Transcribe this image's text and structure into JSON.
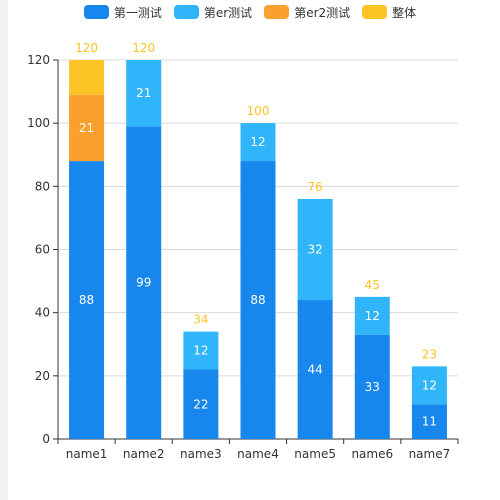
{
  "chart_data": {
    "type": "bar",
    "stacked": true,
    "categories": [
      "name1",
      "name2",
      "name3",
      "name4",
      "name5",
      "name6",
      "name7"
    ],
    "series": [
      {
        "name": "第一测试",
        "color": "#1787ed",
        "values": [
          88,
          99,
          22,
          88,
          44,
          33,
          11
        ]
      },
      {
        "name": "第er测试",
        "color": "#30b4fa",
        "values": [
          0,
          21,
          12,
          12,
          32,
          12,
          12
        ]
      },
      {
        "name": "第er2测试",
        "color": "#f9a02e",
        "values": [
          21,
          0,
          0,
          0,
          0,
          0,
          0
        ]
      },
      {
        "name": "整体",
        "color": "#fdc426",
        "values": [
          11,
          0,
          0,
          0,
          0,
          0,
          0
        ]
      }
    ],
    "totals": [
      120,
      120,
      34,
      100,
      76,
      45,
      23
    ],
    "total_label_color": "#fdc426",
    "ylim": [
      0,
      120
    ],
    "yticks": [
      0,
      20,
      40,
      60,
      80,
      100,
      120
    ],
    "grid": true,
    "legend_position": "top-center",
    "xlabel": "",
    "ylabel": "",
    "title": ""
  }
}
